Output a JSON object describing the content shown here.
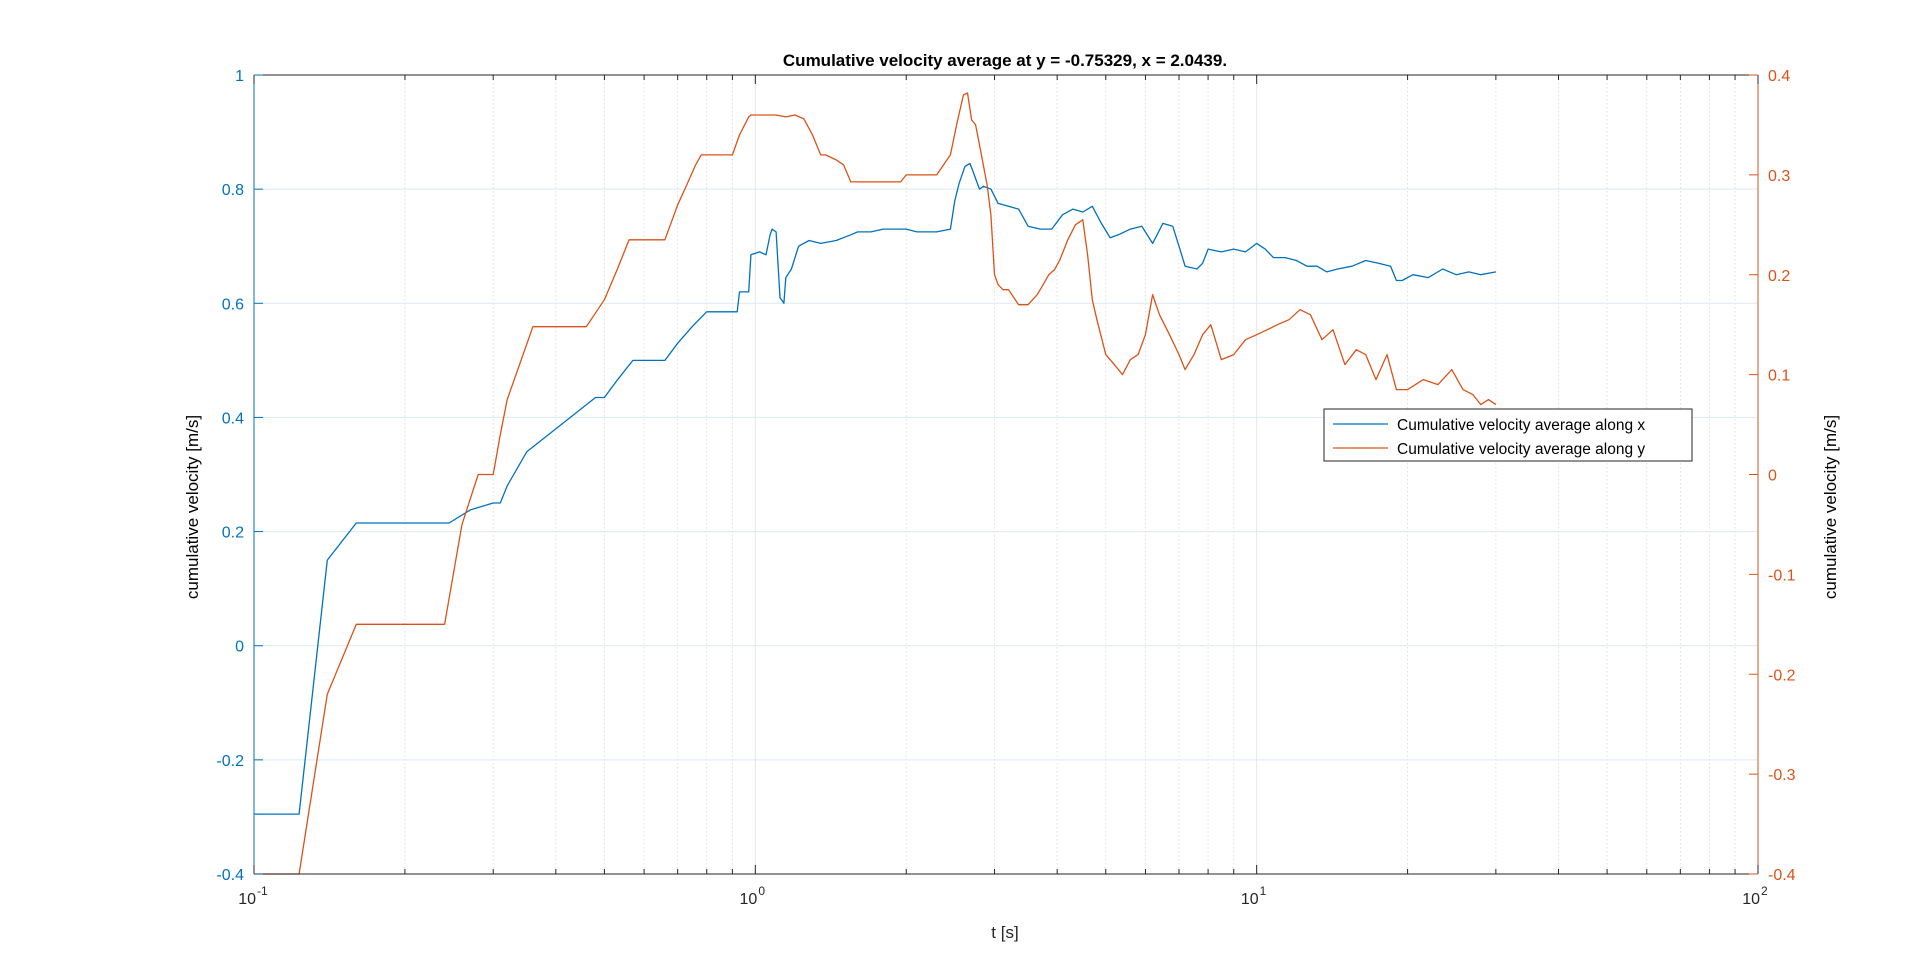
{
  "chart_data": {
    "type": "line",
    "title": "Cumulative velocity average at y = -0.75329, x = 2.0439.",
    "xlabel": "t [s]",
    "ylabel_left": "cumulative velocity [m/s]",
    "ylabel_right": "cumulative velocity [m/s]",
    "xscale": "log",
    "xlim": [
      0.1,
      100
    ],
    "ylim_left": [
      -0.4,
      1
    ],
    "ylim_right": [
      -0.4,
      0.4
    ],
    "xticks": [
      {
        "value": 0.1,
        "base": "10",
        "exp": "-1"
      },
      {
        "value": 1,
        "base": "10",
        "exp": "0"
      },
      {
        "value": 10,
        "base": "10",
        "exp": "1"
      },
      {
        "value": 100,
        "base": "10",
        "exp": "2"
      }
    ],
    "yticks_left": [
      "-0.4",
      "-0.2",
      "0",
      "0.2",
      "0.4",
      "0.6",
      "0.8",
      "1"
    ],
    "yticks_right": [
      "-0.4",
      "-0.3",
      "-0.2",
      "-0.1",
      "0",
      "0.1",
      "0.2",
      "0.3",
      "0.4"
    ],
    "grid": true,
    "legend_position": "right",
    "colors": {
      "x_series": "#0072BD",
      "y_series": "#D95319",
      "axis": "#262626",
      "grid": "#E6E6E6"
    },
    "series": [
      {
        "name": "Cumulative velocity average along x",
        "axis": "left",
        "color": "#0072BD",
        "x": [
          0.1,
          0.123,
          0.14,
          0.16,
          0.245,
          0.27,
          0.3,
          0.31,
          0.32,
          0.35,
          0.48,
          0.5,
          0.53,
          0.57,
          0.66,
          0.7,
          0.75,
          0.8,
          0.92,
          0.93,
          0.97,
          0.98,
          1.02,
          1.05,
          1.07,
          1.08,
          1.1,
          1.12,
          1.14,
          1.15,
          1.18,
          1.22,
          1.28,
          1.35,
          1.45,
          1.55,
          1.6,
          1.7,
          1.8,
          2.0,
          2.1,
          2.3,
          2.45,
          2.5,
          2.55,
          2.62,
          2.68,
          2.72,
          2.8,
          2.85,
          2.95,
          3.05,
          3.2,
          3.35,
          3.5,
          3.7,
          3.9,
          4.1,
          4.3,
          4.5,
          4.7,
          4.9,
          5.1,
          5.3,
          5.6,
          5.9,
          6.2,
          6.5,
          6.8,
          7.0,
          7.2,
          7.6,
          7.8,
          8.0,
          8.5,
          9.0,
          9.5,
          10.0,
          10.4,
          10.8,
          11.4,
          12.0,
          12.6,
          13.2,
          13.8,
          14.5,
          15.5,
          16.5,
          17.5,
          18.5,
          19.0,
          19.5,
          20.5,
          22.0,
          23.5,
          25.0,
          26.5,
          28.0,
          30.0
        ],
        "y": [
          -0.295,
          -0.295,
          0.15,
          0.215,
          0.215,
          0.238,
          0.25,
          0.25,
          0.28,
          0.34,
          0.435,
          0.435,
          0.465,
          0.5,
          0.5,
          0.53,
          0.56,
          0.585,
          0.585,
          0.62,
          0.62,
          0.685,
          0.69,
          0.685,
          0.72,
          0.73,
          0.725,
          0.61,
          0.6,
          0.645,
          0.66,
          0.7,
          0.71,
          0.705,
          0.71,
          0.72,
          0.725,
          0.725,
          0.73,
          0.73,
          0.725,
          0.725,
          0.73,
          0.78,
          0.81,
          0.84,
          0.845,
          0.83,
          0.8,
          0.805,
          0.8,
          0.775,
          0.77,
          0.765,
          0.735,
          0.73,
          0.73,
          0.755,
          0.765,
          0.76,
          0.77,
          0.74,
          0.715,
          0.72,
          0.73,
          0.735,
          0.705,
          0.74,
          0.735,
          0.7,
          0.665,
          0.66,
          0.67,
          0.695,
          0.69,
          0.695,
          0.69,
          0.705,
          0.695,
          0.68,
          0.68,
          0.675,
          0.665,
          0.665,
          0.655,
          0.66,
          0.665,
          0.675,
          0.67,
          0.665,
          0.64,
          0.64,
          0.65,
          0.645,
          0.66,
          0.65,
          0.655,
          0.65,
          0.655
        ]
      },
      {
        "name": "Cumulative velocity average along y",
        "axis": "right",
        "color": "#D95319",
        "x": [
          0.1,
          0.123,
          0.14,
          0.16,
          0.24,
          0.26,
          0.28,
          0.3,
          0.31,
          0.32,
          0.36,
          0.46,
          0.5,
          0.53,
          0.56,
          0.66,
          0.7,
          0.73,
          0.76,
          0.78,
          0.9,
          0.93,
          0.97,
          0.98,
          1.05,
          1.1,
          1.15,
          1.2,
          1.25,
          1.3,
          1.35,
          1.38,
          1.45,
          1.5,
          1.55,
          1.75,
          1.95,
          2.0,
          2.3,
          2.45,
          2.52,
          2.6,
          2.65,
          2.7,
          2.75,
          2.8,
          2.9,
          2.95,
          3.0,
          3.05,
          3.12,
          3.2,
          3.35,
          3.5,
          3.65,
          3.75,
          3.85,
          3.95,
          4.05,
          4.2,
          4.35,
          4.5,
          4.6,
          4.7,
          4.8,
          5.0,
          5.2,
          5.4,
          5.6,
          5.8,
          6.0,
          6.2,
          6.4,
          6.7,
          7.0,
          7.2,
          7.5,
          7.8,
          8.1,
          8.5,
          9.0,
          9.5,
          10.0,
          10.5,
          11.0,
          11.6,
          12.2,
          12.8,
          13.5,
          14.2,
          15.0,
          15.8,
          16.5,
          17.3,
          18.2,
          19.0,
          20.0,
          21.5,
          23.0,
          24.5,
          25.8,
          27.0,
          28.0,
          29.0,
          30.0
        ],
        "y": [
          -0.4,
          -0.4,
          -0.22,
          -0.15,
          -0.15,
          -0.05,
          0.0,
          0.0,
          0.04,
          0.075,
          0.148,
          0.148,
          0.175,
          0.205,
          0.235,
          0.235,
          0.27,
          0.29,
          0.31,
          0.32,
          0.32,
          0.34,
          0.358,
          0.36,
          0.36,
          0.36,
          0.358,
          0.36,
          0.356,
          0.34,
          0.32,
          0.32,
          0.315,
          0.31,
          0.293,
          0.293,
          0.293,
          0.3,
          0.3,
          0.32,
          0.35,
          0.38,
          0.382,
          0.355,
          0.35,
          0.33,
          0.29,
          0.26,
          0.2,
          0.19,
          0.185,
          0.185,
          0.17,
          0.17,
          0.18,
          0.19,
          0.2,
          0.205,
          0.215,
          0.235,
          0.25,
          0.255,
          0.22,
          0.175,
          0.155,
          0.12,
          0.11,
          0.1,
          0.115,
          0.12,
          0.14,
          0.18,
          0.16,
          0.14,
          0.12,
          0.105,
          0.12,
          0.14,
          0.15,
          0.115,
          0.12,
          0.135,
          0.14,
          0.145,
          0.15,
          0.155,
          0.165,
          0.16,
          0.135,
          0.145,
          0.11,
          0.125,
          0.12,
          0.095,
          0.12,
          0.085,
          0.085,
          0.095,
          0.09,
          0.105,
          0.085,
          0.08,
          0.07,
          0.075,
          0.07
        ]
      }
    ]
  }
}
